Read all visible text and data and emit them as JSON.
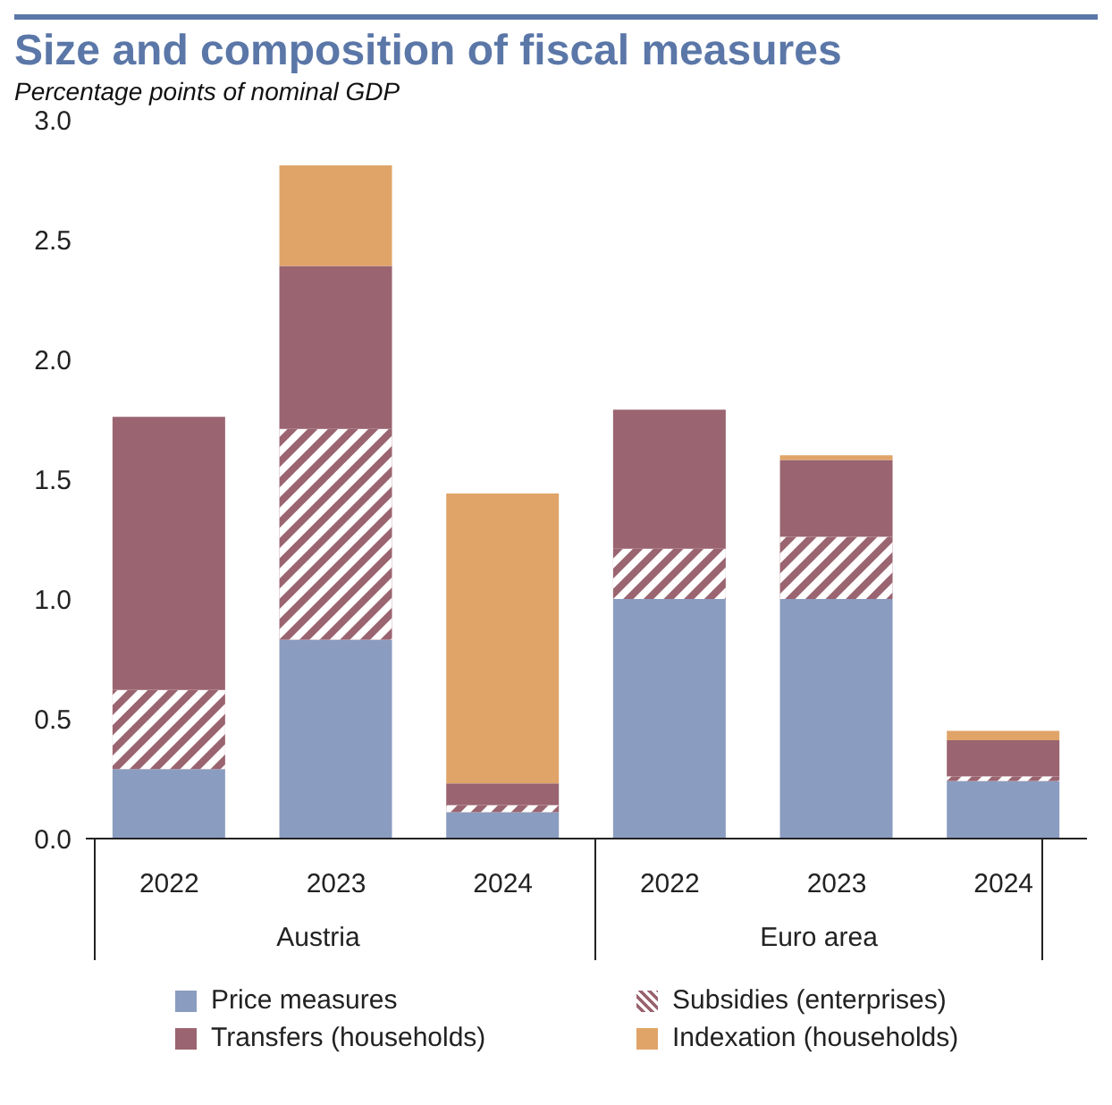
{
  "chart_data": {
    "type": "bar",
    "title": "Size and composition of fiscal measures",
    "subtitle": "Percentage points of nominal GDP",
    "stacked": true,
    "categories": [
      "2022",
      "2023",
      "2024",
      "2022",
      "2023",
      "2024"
    ],
    "annotations": [
      "Austria",
      "Euro area"
    ],
    "series": [
      {
        "name": "Price measures",
        "color": "#8a9cc0",
        "values": [
          0.29,
          0.83,
          0.11,
          1.0,
          1.0,
          0.24
        ]
      },
      {
        "name": "Subsidies (enterprises)",
        "color": "#9a6470",
        "values": [
          0.33,
          0.88,
          0.03,
          0.21,
          0.26,
          0.02
        ]
      },
      {
        "name": "Transfers (households)",
        "color": "#9a6470",
        "values": [
          1.14,
          0.68,
          0.09,
          0.58,
          0.32,
          0.15
        ]
      },
      {
        "name": "Indexation (households)",
        "color": "#e0a468",
        "values": [
          0,
          0.42,
          1.21,
          0,
          0.02,
          0.04
        ]
      }
    ],
    "ylim": [
      0,
      3
    ],
    "yticks": [
      {
        "value": 0,
        "label": "0.0"
      },
      {
        "value": 0.5,
        "label": "0.5"
      },
      {
        "value": 1,
        "label": "1.0"
      },
      {
        "value": 1.5,
        "label": "1.5"
      },
      {
        "value": 2,
        "label": "2.0"
      },
      {
        "value": 2.5,
        "label": "2.5"
      },
      {
        "value": 3,
        "label": "3.0"
      }
    ],
    "legend": "bottom"
  }
}
